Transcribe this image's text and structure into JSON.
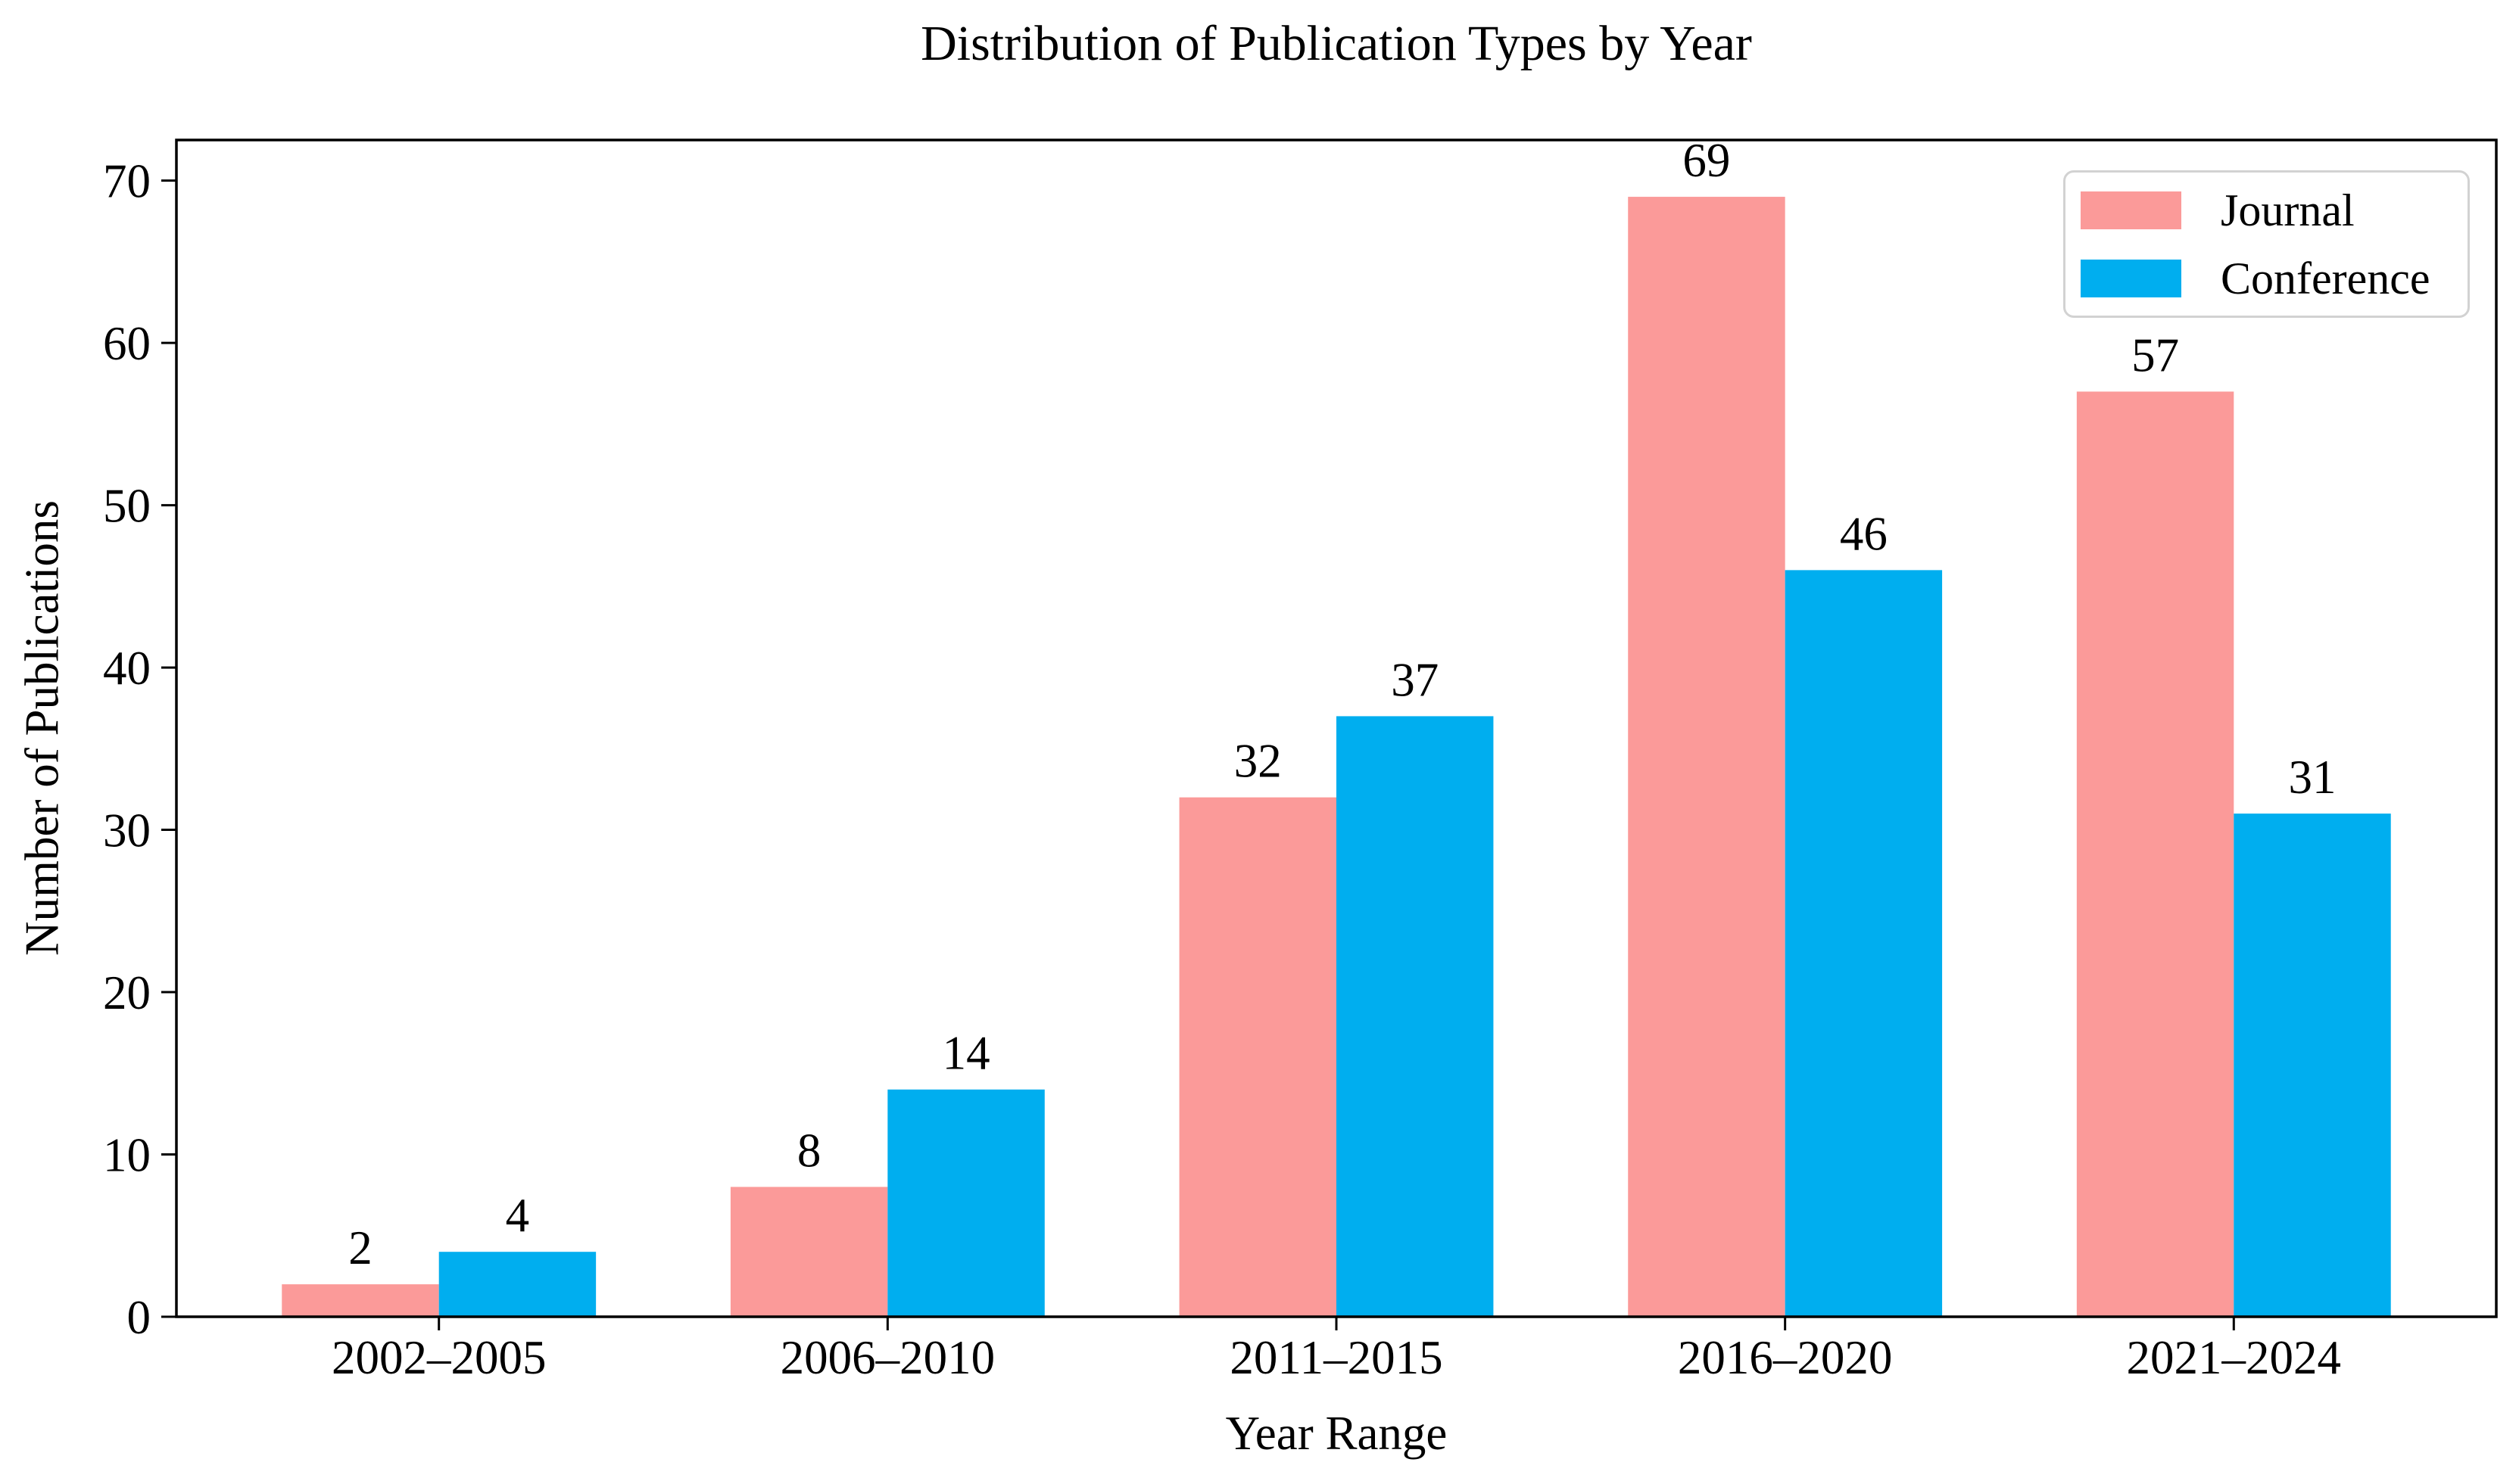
{
  "chart_data": {
    "type": "bar",
    "title": "Distribution of Publication Types by Year",
    "xlabel": "Year Range",
    "ylabel": "Number of Publications",
    "categories": [
      "2002–2005",
      "2006–2010",
      "2011–2015",
      "2016–2020",
      "2021–2024"
    ],
    "series": [
      {
        "name": "Journal",
        "color": "#FB9A99",
        "values": [
          2,
          8,
          32,
          69,
          57
        ]
      },
      {
        "name": "Conference",
        "color": "#00AEEF",
        "values": [
          4,
          14,
          37,
          46,
          31
        ]
      }
    ],
    "yticks": [
      0,
      10,
      20,
      30,
      40,
      50,
      60,
      70
    ],
    "ylim": [
      0,
      72.5
    ],
    "xlim": [
      -0.585,
      4.585
    ],
    "bar_width": 0.35,
    "grid": false,
    "value_labels": true,
    "legend_position": "upper right",
    "text_color": "#000000",
    "axis_color": "#000000"
  }
}
